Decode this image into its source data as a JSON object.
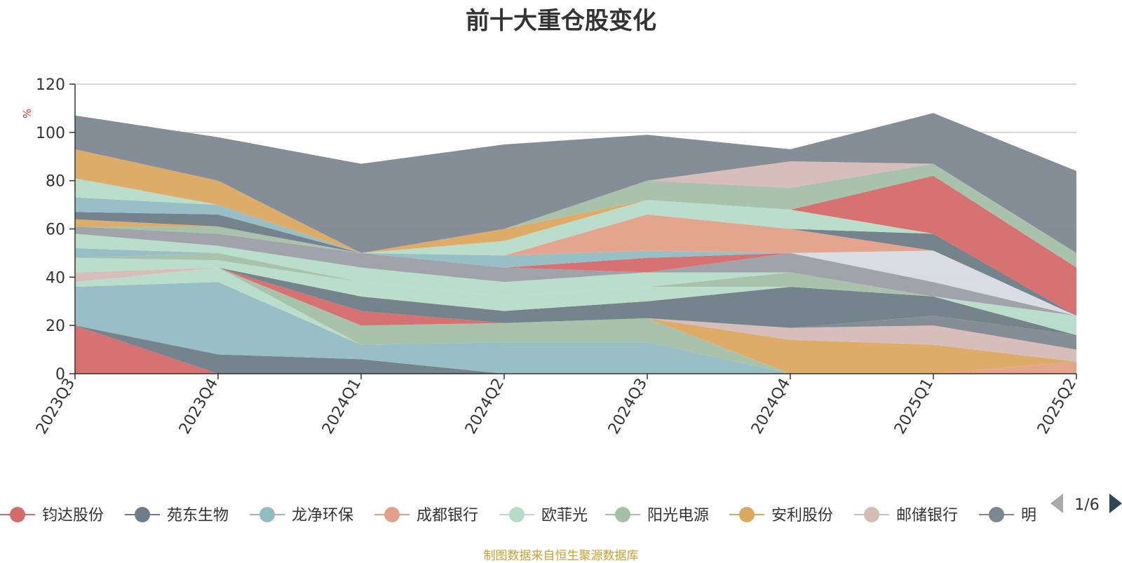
{
  "footer": "制图数据来自恒生聚源数据库",
  "legend": {
    "page_indicator": "1/6",
    "visible_items": [
      "钧达股份",
      "苑东生物",
      "龙净环保",
      "成都银行",
      "欧菲光",
      "阳光电源",
      "安利股份",
      "邮储银行",
      "明"
    ]
  },
  "chart_data": {
    "type": "area",
    "stacked": true,
    "title": "前十大重仓股变化",
    "ylabel": "%",
    "xlabel": "",
    "ylim": [
      0,
      120
    ],
    "yticks": [
      0,
      20,
      40,
      60,
      80,
      100,
      120
    ],
    "grid": true,
    "legend_position": "bottom",
    "x": [
      "2023Q3",
      "2023Q4",
      "2024Q1",
      "2024Q2",
      "2024Q3",
      "2024Q4",
      "2025Q1",
      "2025Q2"
    ],
    "series": [
      {
        "name": "钧达股份",
        "color": "#d46a6a",
        "values": [
          20,
          0,
          0,
          0,
          0,
          0,
          0,
          0
        ]
      },
      {
        "name": "苑东生物",
        "color": "#6e7c87",
        "values": [
          0,
          8,
          6,
          0,
          0,
          0,
          0,
          0
        ]
      },
      {
        "name": "龙净环保",
        "color": "#91bcc2",
        "values": [
          16,
          30,
          6,
          13,
          13,
          0,
          0,
          0
        ]
      },
      {
        "name": "成都银行",
        "color": "#e3a088",
        "values": [
          0,
          0,
          0,
          0,
          0,
          0,
          0,
          5
        ]
      },
      {
        "name": "欧菲光",
        "color": "#b6dcc8",
        "values": [
          2,
          6,
          0,
          0,
          0,
          0,
          0,
          0
        ]
      },
      {
        "name": "阳光电源",
        "color": "#a4bfa6",
        "values": [
          0,
          0,
          8,
          8,
          10,
          0,
          0,
          0
        ]
      },
      {
        "name": "安利股份",
        "color": "#dba860",
        "values": [
          0,
          0,
          0,
          0,
          0,
          14,
          12,
          0
        ]
      },
      {
        "name": "邮储银行",
        "color": "#d5bbb6",
        "values": [
          4,
          0,
          0,
          0,
          0,
          5,
          8,
          5
        ]
      },
      {
        "name": "明",
        "color": "#7e8790",
        "values": [
          0,
          0,
          0,
          0,
          0,
          0,
          4,
          6
        ]
      },
      {
        "color": "#d7dbe1",
        "values": [
          0,
          0,
          0,
          0,
          0,
          0,
          0,
          0
        ]
      },
      {
        "color": "#d46a6a",
        "values": [
          0,
          0,
          6,
          0,
          0,
          0,
          0,
          0
        ]
      },
      {
        "color": "#6e7c87",
        "values": [
          0,
          0,
          6,
          5,
          7,
          17,
          8,
          0
        ]
      },
      {
        "color": "#b6dcc8",
        "values": [
          6,
          3,
          6,
          6,
          6,
          0,
          0,
          4
        ]
      },
      {
        "color": "#a4bfa6",
        "values": [
          0,
          3,
          0,
          0,
          0,
          6,
          0,
          0
        ]
      },
      {
        "color": "#91bcc2",
        "values": [
          4,
          0,
          0,
          0,
          0,
          0,
          0,
          0
        ]
      },
      {
        "color": "#b6dcc8",
        "values": [
          6,
          3,
          6,
          6,
          6,
          0,
          0,
          4
        ]
      },
      {
        "color": "#9c9ea5",
        "values": [
          3,
          5,
          6,
          6,
          0,
          8,
          6,
          0
        ]
      },
      {
        "color": "#a4bfa6",
        "values": [
          0,
          3,
          0,
          0,
          0,
          0,
          0,
          0
        ]
      },
      {
        "color": "#dba860",
        "values": [
          3,
          0,
          0,
          0,
          0,
          0,
          0,
          0
        ]
      },
      {
        "color": "#d7dbe1",
        "values": [
          0,
          0,
          0,
          0,
          0,
          0,
          13,
          0
        ]
      },
      {
        "color": "#d46a6a",
        "values": [
          0,
          0,
          0,
          0,
          6,
          0,
          0,
          0
        ]
      },
      {
        "color": "#91bcc2",
        "values": [
          0,
          0,
          0,
          5,
          3,
          0,
          0,
          0
        ]
      },
      {
        "color": "#e3a088",
        "values": [
          0,
          0,
          0,
          0,
          15,
          10,
          0,
          0
        ]
      },
      {
        "color": "#6e7c87",
        "values": [
          3,
          5,
          0,
          0,
          0,
          0,
          7,
          0
        ]
      },
      {
        "color": "#91bcc2",
        "values": [
          6,
          4,
          0,
          0,
          0,
          0,
          0,
          0
        ]
      },
      {
        "color": "#b6dcc8",
        "values": [
          8,
          0,
          0,
          6,
          6,
          8,
          0,
          0
        ]
      },
      {
        "color": "#dba860",
        "values": [
          12,
          10,
          0,
          5,
          0,
          0,
          0,
          0
        ]
      },
      {
        "color": "#d46a6a",
        "values": [
          0,
          0,
          0,
          0,
          0,
          0,
          24,
          20
        ]
      },
      {
        "color": "#a4bfa6",
        "values": [
          0,
          0,
          0,
          0,
          8,
          9,
          5,
          6
        ]
      },
      {
        "color": "#d5bbb6",
        "values": [
          0,
          0,
          0,
          0,
          0,
          11,
          0,
          0
        ]
      },
      {
        "color": "#7e8790",
        "values": [
          14,
          18,
          37,
          35,
          19,
          5,
          21,
          34
        ]
      }
    ]
  }
}
